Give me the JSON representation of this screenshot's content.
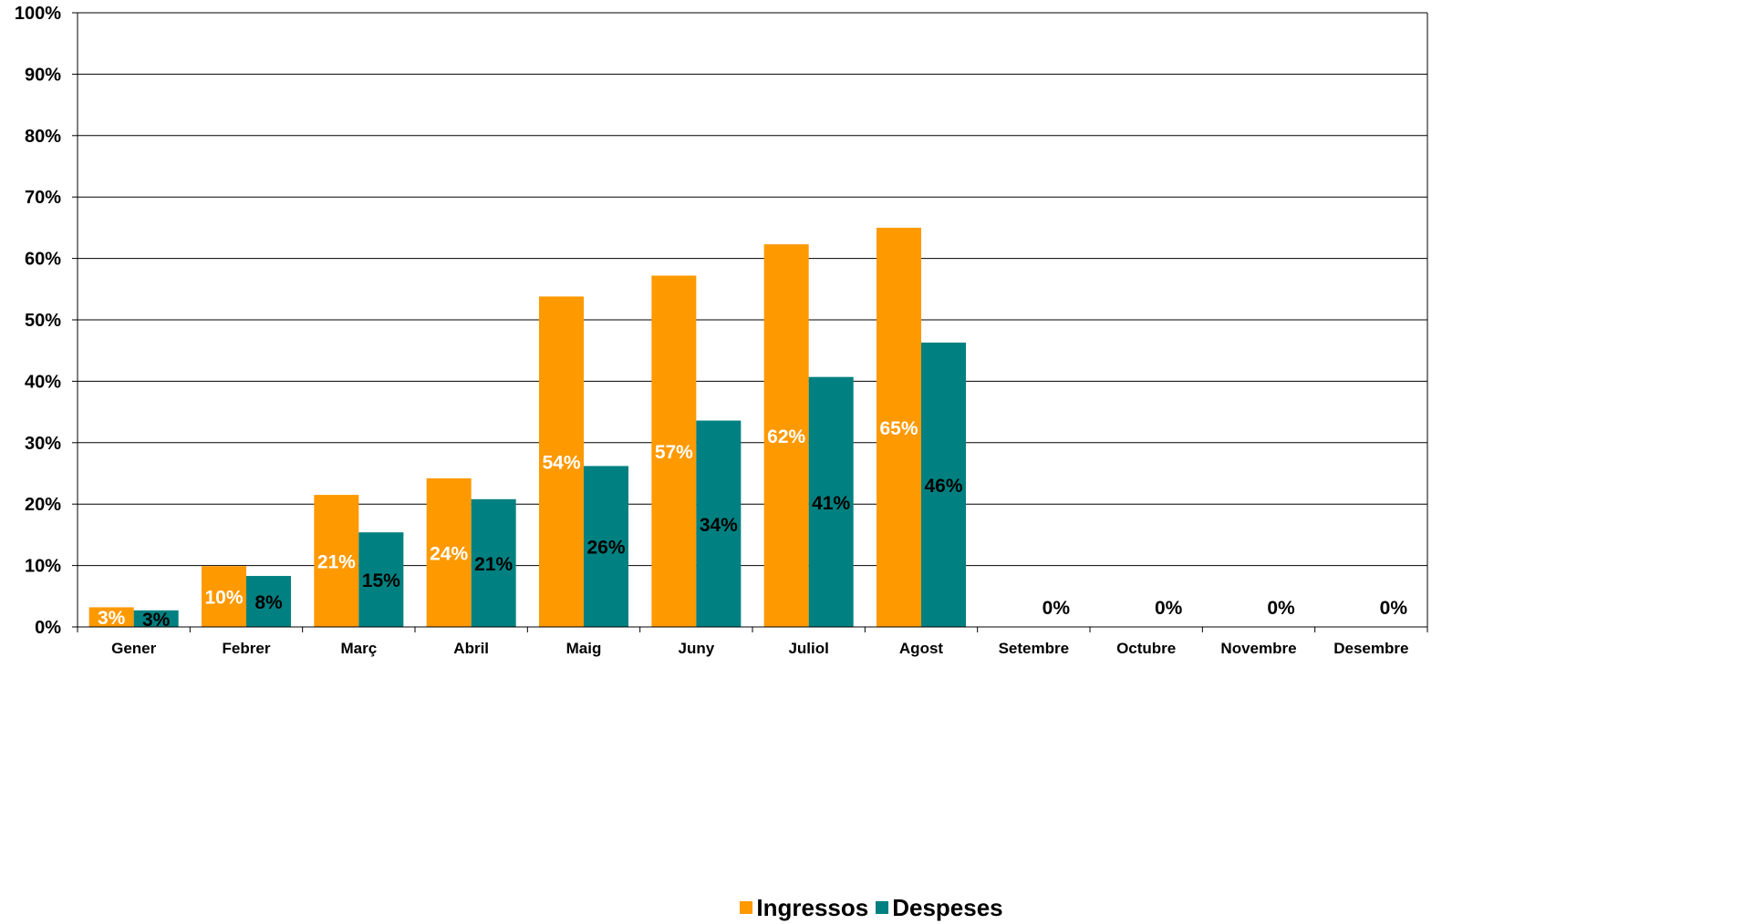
{
  "chart_data": {
    "type": "bar",
    "categories": [
      "Gener",
      "Febrer",
      "Març",
      "Abril",
      "Maig",
      "Juny",
      "Juliol",
      "Agost",
      "Setembre",
      "Octubre",
      "Novembre",
      "Desembre"
    ],
    "series": [
      {
        "name": "Ingressos",
        "color": "#FF9900",
        "values": [
          3.2,
          9.9,
          21.5,
          24.2,
          53.8,
          57.2,
          62.3,
          65.0,
          0,
          0,
          0,
          0
        ],
        "labels": [
          "3%",
          "10%",
          "21%",
          "24%",
          "54%",
          "57%",
          "62%",
          "65%",
          "",
          "",
          "",
          ""
        ]
      },
      {
        "name": "Despeses",
        "color": "#008080",
        "values": [
          2.7,
          8.3,
          15.4,
          20.8,
          26.2,
          33.6,
          40.7,
          46.3,
          0,
          0,
          0,
          0
        ],
        "labels": [
          "3%",
          "8%",
          "15%",
          "21%",
          "26%",
          "34%",
          "41%",
          "46%",
          "0%",
          "0%",
          "0%",
          "0%"
        ]
      }
    ],
    "ylim": [
      0,
      100
    ],
    "yticks": [
      "0%",
      "10%",
      "20%",
      "30%",
      "40%",
      "50%",
      "60%",
      "70%",
      "80%",
      "90%",
      "100%"
    ],
    "grid": true,
    "legend_position": "bottom"
  }
}
